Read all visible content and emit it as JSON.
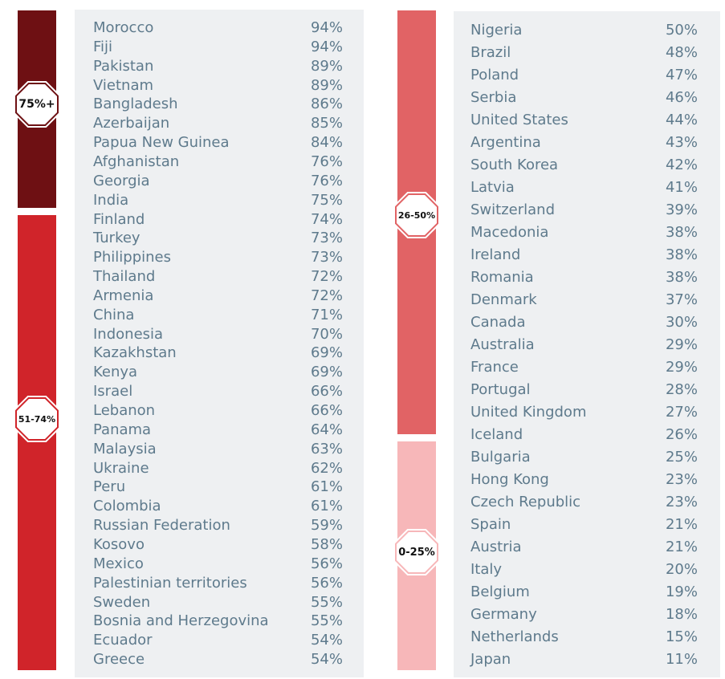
{
  "chart_data": {
    "type": "table",
    "columns": [
      {
        "groups": [
          {
            "label": "75%+",
            "color": "#6e1013"
          },
          {
            "label": "51-74%",
            "color": "#d0242a"
          }
        ],
        "rows": [
          {
            "country": "Morocco",
            "value": 94,
            "label": "94%"
          },
          {
            "country": "Fiji",
            "value": 94,
            "label": "94%"
          },
          {
            "country": "Pakistan",
            "value": 89,
            "label": "89%"
          },
          {
            "country": "Vietnam",
            "value": 89,
            "label": "89%"
          },
          {
            "country": "Bangladesh",
            "value": 86,
            "label": "86%"
          },
          {
            "country": "Azerbaijan",
            "value": 85,
            "label": "85%"
          },
          {
            "country": "Papua New Guinea",
            "value": 84,
            "label": "84%"
          },
          {
            "country": "Afghanistan",
            "value": 76,
            "label": "76%"
          },
          {
            "country": "Georgia",
            "value": 76,
            "label": "76%"
          },
          {
            "country": "India",
            "value": 75,
            "label": "75%"
          },
          {
            "country": "Finland",
            "value": 74,
            "label": "74%"
          },
          {
            "country": "Turkey",
            "value": 73,
            "label": "73%"
          },
          {
            "country": "Philippines",
            "value": 73,
            "label": "73%"
          },
          {
            "country": "Thailand",
            "value": 72,
            "label": "72%"
          },
          {
            "country": "Armenia",
            "value": 72,
            "label": "72%"
          },
          {
            "country": "China",
            "value": 71,
            "label": "71%"
          },
          {
            "country": "Indonesia",
            "value": 70,
            "label": "70%"
          },
          {
            "country": "Kazakhstan",
            "value": 69,
            "label": "69%"
          },
          {
            "country": "Kenya",
            "value": 69,
            "label": "69%"
          },
          {
            "country": "Israel",
            "value": 66,
            "label": "66%"
          },
          {
            "country": "Lebanon",
            "value": 66,
            "label": "66%"
          },
          {
            "country": "Panama",
            "value": 64,
            "label": "64%"
          },
          {
            "country": "Malaysia",
            "value": 63,
            "label": "63%"
          },
          {
            "country": "Ukraine",
            "value": 62,
            "label": "62%"
          },
          {
            "country": "Peru",
            "value": 61,
            "label": "61%"
          },
          {
            "country": "Colombia",
            "value": 61,
            "label": "61%"
          },
          {
            "country": "Russian Federation",
            "value": 59,
            "label": "59%"
          },
          {
            "country": "Kosovo",
            "value": 58,
            "label": "58%"
          },
          {
            "country": "Mexico",
            "value": 56,
            "label": "56%"
          },
          {
            "country": "Palestinian territories",
            "value": 56,
            "label": "56%"
          },
          {
            "country": "Sweden",
            "value": 55,
            "label": "55%"
          },
          {
            "country": "Bosnia and Herzegovina",
            "value": 55,
            "label": "55%"
          },
          {
            "country": "Ecuador",
            "value": 54,
            "label": "54%"
          },
          {
            "country": "Greece",
            "value": 54,
            "label": "54%"
          }
        ]
      },
      {
        "groups": [
          {
            "label": "26-50%",
            "color": "#e16365"
          },
          {
            "label": "0-25%",
            "color": "#f7b7b9"
          }
        ],
        "rows": [
          {
            "country": "Nigeria",
            "value": 50,
            "label": "50%"
          },
          {
            "country": "Brazil",
            "value": 48,
            "label": "48%"
          },
          {
            "country": "Poland",
            "value": 47,
            "label": "47%"
          },
          {
            "country": "Serbia",
            "value": 46,
            "label": "46%"
          },
          {
            "country": "United States",
            "value": 44,
            "label": "44%"
          },
          {
            "country": "Argentina",
            "value": 43,
            "label": "43%"
          },
          {
            "country": "South Korea",
            "value": 42,
            "label": "42%"
          },
          {
            "country": "Latvia",
            "value": 41,
            "label": "41%"
          },
          {
            "country": "Switzerland",
            "value": 39,
            "label": "39%"
          },
          {
            "country": "Macedonia",
            "value": 38,
            "label": "38%"
          },
          {
            "country": "Ireland",
            "value": 38,
            "label": "38%"
          },
          {
            "country": "Romania",
            "value": 38,
            "label": "38%"
          },
          {
            "country": "Denmark",
            "value": 37,
            "label": "37%"
          },
          {
            "country": "Canada",
            "value": 30,
            "label": "30%"
          },
          {
            "country": "Australia",
            "value": 29,
            "label": "29%"
          },
          {
            "country": "France",
            "value": 29,
            "label": "29%"
          },
          {
            "country": "Portugal",
            "value": 28,
            "label": "28%"
          },
          {
            "country": "United Kingdom",
            "value": 27,
            "label": "27%"
          },
          {
            "country": "Iceland",
            "value": 26,
            "label": "26%"
          },
          {
            "country": "Bulgaria",
            "value": 25,
            "label": "25%"
          },
          {
            "country": "Hong Kong",
            "value": 23,
            "label": "23%"
          },
          {
            "country": "Czech Republic",
            "value": 23,
            "label": "23%"
          },
          {
            "country": "Spain",
            "value": 21,
            "label": "21%"
          },
          {
            "country": "Austria",
            "value": 21,
            "label": "21%"
          },
          {
            "country": "Italy",
            "value": 20,
            "label": "20%"
          },
          {
            "country": "Belgium",
            "value": 19,
            "label": "19%"
          },
          {
            "country": "Germany",
            "value": 18,
            "label": "18%"
          },
          {
            "country": "Netherlands",
            "value": 15,
            "label": "15%"
          },
          {
            "country": "Japan",
            "value": 11,
            "label": "11%"
          }
        ]
      }
    ]
  }
}
